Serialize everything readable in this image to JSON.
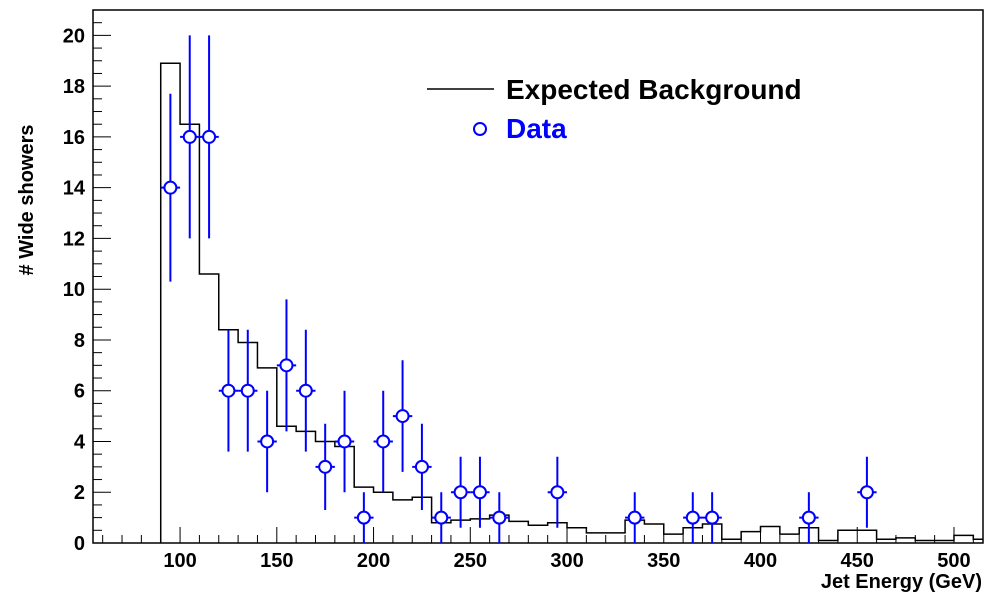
{
  "chart_data": {
    "type": "histogram",
    "xlabel": "Jet Energy (GeV)",
    "ylabel": "# Wide showers",
    "xlim": [
      55,
      515
    ],
    "ylim": [
      0,
      21
    ],
    "x_ticks": [
      100,
      150,
      200,
      250,
      300,
      350,
      400,
      450,
      500
    ],
    "y_ticks": [
      0,
      2,
      4,
      6,
      8,
      10,
      12,
      14,
      16,
      18,
      20
    ],
    "grid": false,
    "legend_position": "top-right",
    "legend": [
      {
        "label": "Expected Background",
        "marker": "line",
        "color": "#000000"
      },
      {
        "label": "Data",
        "marker": "open-circle",
        "color": "#0000ff"
      }
    ],
    "background": {
      "name": "Expected Background",
      "color": "#000000",
      "bin_edges": [
        90,
        100,
        110,
        120,
        130,
        140,
        150,
        160,
        170,
        180,
        190,
        200,
        210,
        220,
        230,
        240,
        250,
        260,
        270,
        280,
        290,
        300,
        310,
        320,
        330,
        340,
        350,
        360,
        370,
        380,
        390,
        400,
        410,
        420,
        430,
        440,
        450,
        460,
        470,
        480,
        490,
        500,
        510,
        515
      ],
      "values": [
        18.9,
        16.5,
        10.6,
        8.4,
        7.9,
        6.9,
        4.6,
        4.4,
        4.0,
        3.8,
        2.2,
        2.0,
        1.7,
        1.8,
        0.8,
        0.9,
        0.95,
        1.1,
        0.85,
        0.7,
        0.8,
        0.6,
        0.4,
        0.4,
        0.9,
        0.75,
        0.35,
        0.6,
        0.75,
        0.15,
        0.45,
        0.65,
        0.35,
        0.6,
        0.1,
        0.5,
        0.5,
        0.15,
        0.2,
        0.1,
        0.1,
        0.3,
        0.15
      ]
    },
    "data": {
      "name": "Data",
      "color": "#0000ff",
      "points": [
        {
          "x": 95,
          "y": 14,
          "err": 3.7
        },
        {
          "x": 105,
          "y": 16,
          "err": 4.0
        },
        {
          "x": 115,
          "y": 16,
          "err": 4.0
        },
        {
          "x": 125,
          "y": 6,
          "err": 2.4
        },
        {
          "x": 135,
          "y": 6,
          "err": 2.4
        },
        {
          "x": 145,
          "y": 4,
          "err": 2.0
        },
        {
          "x": 155,
          "y": 7,
          "err": 2.6
        },
        {
          "x": 165,
          "y": 6,
          "err": 2.4
        },
        {
          "x": 175,
          "y": 3,
          "err": 1.7
        },
        {
          "x": 185,
          "y": 4,
          "err": 2.0
        },
        {
          "x": 195,
          "y": 1,
          "err": 1.0
        },
        {
          "x": 205,
          "y": 4,
          "err": 2.0
        },
        {
          "x": 215,
          "y": 5,
          "err": 2.2
        },
        {
          "x": 225,
          "y": 3,
          "err": 1.7
        },
        {
          "x": 235,
          "y": 1,
          "err": 1.0
        },
        {
          "x": 245,
          "y": 2,
          "err": 1.4
        },
        {
          "x": 255,
          "y": 2,
          "err": 1.4
        },
        {
          "x": 265,
          "y": 1,
          "err": 1.0
        },
        {
          "x": 295,
          "y": 2,
          "err": 1.4
        },
        {
          "x": 335,
          "y": 1,
          "err": 1.0
        },
        {
          "x": 365,
          "y": 1,
          "err": 1.0
        },
        {
          "x": 375,
          "y": 1,
          "err": 1.0
        },
        {
          "x": 425,
          "y": 1,
          "err": 1.0
        },
        {
          "x": 455,
          "y": 2,
          "err": 1.4
        }
      ]
    }
  }
}
